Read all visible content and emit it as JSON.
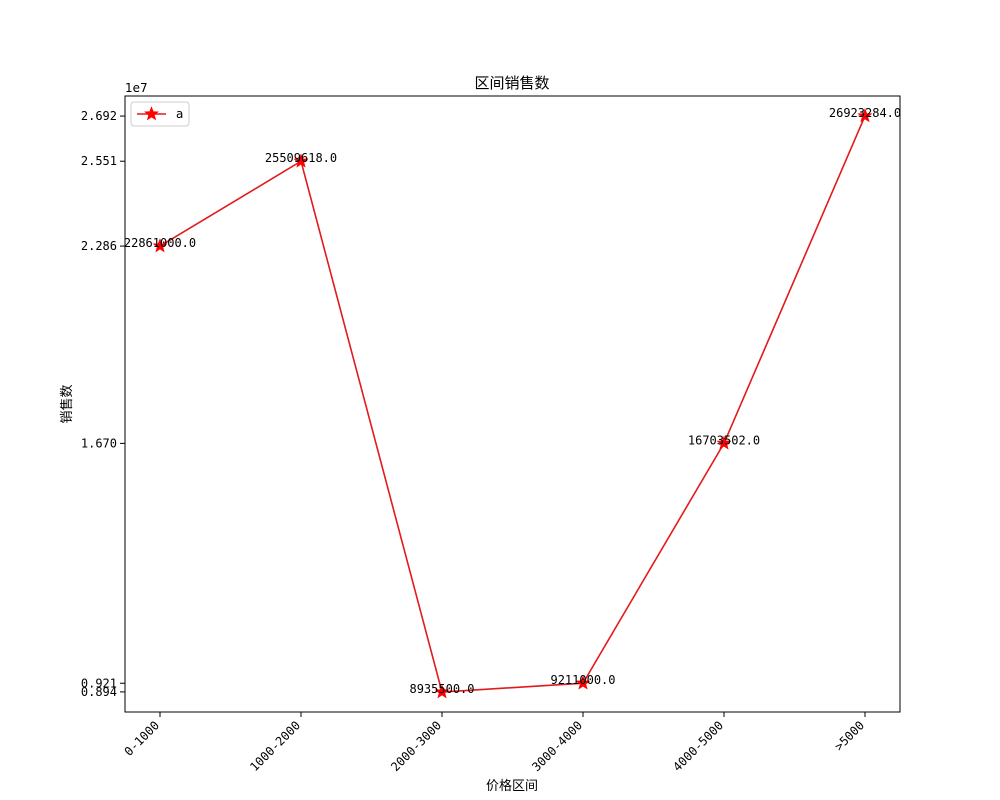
{
  "chart_data": {
    "type": "line",
    "title": "区间销售数",
    "xlabel": "价格区间",
    "ylabel": "销售数",
    "y_offset_text": "1e7",
    "categories": [
      "0-1000",
      "1000-2000",
      "2000-3000",
      "3000-4000",
      "4000-5000",
      ">5000"
    ],
    "series": [
      {
        "name": "a",
        "values": [
          22861000.0,
          25509618.0,
          8935500.0,
          9211000.0,
          16703502.0,
          26923284.0
        ],
        "data_labels": [
          "22861000.0",
          "25509618.0",
          "8935500.0",
          "9211000.0",
          "16703502.0",
          "26923284.0"
        ],
        "color": "#ff0000",
        "line_color": "#e31a1c",
        "marker": "star"
      }
    ],
    "y_ticks": [
      0.894,
      0.921,
      1.67,
      2.286,
      2.551,
      2.692
    ],
    "y_tick_labels": [
      "0.894",
      "0.921",
      "1.670",
      "2.286",
      "2.551",
      "2.692"
    ],
    "ylim": [
      8312311,
      27546473
    ],
    "grid": false,
    "legend_position": "top-left"
  }
}
